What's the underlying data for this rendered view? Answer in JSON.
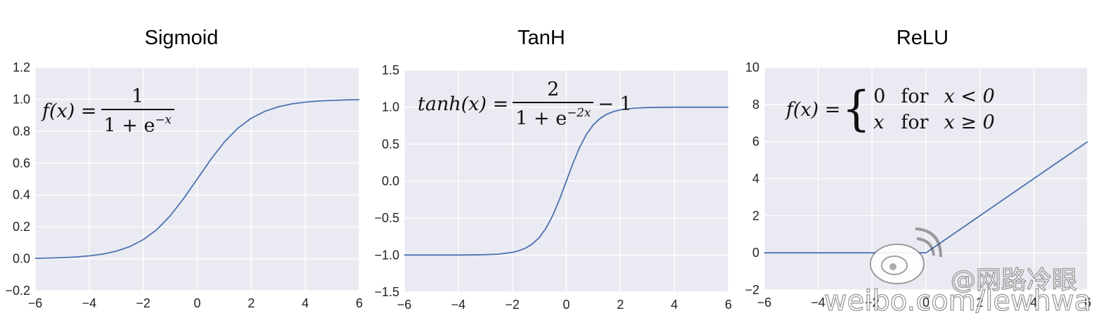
{
  "colors": {
    "plot_background": "#EAEAF2",
    "gridline": "#FFFFFF",
    "curve": "#4C72B0"
  },
  "chart_data": [
    {
      "type": "line",
      "title": "Sigmoid",
      "formula": {
        "lhs": "f(x) =",
        "numerator": "1",
        "denominator_base": "1 + e",
        "denominator_exp": "−x"
      },
      "x": [
        -6,
        -5.5,
        -5,
        -4.5,
        -4,
        -3.5,
        -3,
        -2.5,
        -2,
        -1.5,
        -1,
        -0.5,
        0,
        0.5,
        1,
        1.5,
        2,
        2.5,
        3,
        3.5,
        4,
        4.5,
        5,
        5.5,
        6
      ],
      "y": [
        0.0025,
        0.0041,
        0.0067,
        0.011,
        0.018,
        0.029,
        0.047,
        0.076,
        0.119,
        0.182,
        0.269,
        0.378,
        0.5,
        0.622,
        0.731,
        0.818,
        0.881,
        0.924,
        0.953,
        0.971,
        0.982,
        0.989,
        0.993,
        0.996,
        0.9975
      ],
      "xlim": [
        -6,
        6
      ],
      "ylim": [
        -0.2,
        1.2
      ],
      "xticks": [
        -6,
        -4,
        -2,
        0,
        2,
        4,
        6
      ],
      "xtick_labels": [
        "−6",
        "−4",
        "−2",
        "0",
        "2",
        "4",
        "6"
      ],
      "yticks": [
        -0.2,
        0.0,
        0.2,
        0.4,
        0.6,
        0.8,
        1.0,
        1.2
      ],
      "ytick_labels": [
        "−0.2",
        "0.0",
        "0.2",
        "0.4",
        "0.6",
        "0.8",
        "1.0",
        "1.2"
      ],
      "grid": true
    },
    {
      "type": "line",
      "title": "TanH",
      "formula": {
        "lhs": "tanh(x) =",
        "numerator": "2",
        "denominator_base": "1 + e",
        "denominator_exp": "−2x",
        "rhs": "− 1"
      },
      "x": [
        -6,
        -5,
        -4,
        -3,
        -2.5,
        -2,
        -1.75,
        -1.5,
        -1.25,
        -1,
        -0.75,
        -0.5,
        -0.25,
        0,
        0.25,
        0.5,
        0.75,
        1,
        1.25,
        1.5,
        1.75,
        2,
        2.5,
        3,
        4,
        5,
        6
      ],
      "y": [
        -1.0,
        -1.0,
        -0.9993,
        -0.995,
        -0.987,
        -0.964,
        -0.941,
        -0.905,
        -0.848,
        -0.762,
        -0.635,
        -0.462,
        -0.245,
        0.0,
        0.245,
        0.462,
        0.635,
        0.762,
        0.848,
        0.905,
        0.941,
        0.964,
        0.987,
        0.995,
        0.9993,
        1.0,
        1.0
      ],
      "xlim": [
        -6,
        6
      ],
      "ylim": [
        -1.5,
        1.5
      ],
      "xticks": [
        -6,
        -4,
        -2,
        0,
        2,
        4,
        6
      ],
      "xtick_labels": [
        "−6",
        "−4",
        "−2",
        "0",
        "2",
        "4",
        "6"
      ],
      "yticks": [
        -1.5,
        -1.0,
        -0.5,
        0.0,
        0.5,
        1.0,
        1.5
      ],
      "ytick_labels": [
        "−1.5",
        "−1.0",
        "−0.5",
        "0.0",
        "0.5",
        "1.0",
        "1.5"
      ],
      "grid": true
    },
    {
      "type": "line",
      "title": "ReLU",
      "formula": {
        "lhs": "f(x) =",
        "case1_value": "0",
        "case1_word": "for",
        "case1_cond": "x < 0",
        "case2_value": "x",
        "case2_word": "for",
        "case2_cond": "x ≥ 0"
      },
      "x": [
        -6,
        0,
        6
      ],
      "y": [
        0,
        0,
        6
      ],
      "xlim": [
        -6,
        6
      ],
      "ylim": [
        -2,
        10
      ],
      "xticks": [
        -6,
        -4,
        -2,
        0,
        2,
        4,
        6
      ],
      "xtick_labels": [
        "−6",
        "−4",
        "−2",
        "0",
        "2",
        "4",
        "6"
      ],
      "yticks": [
        -2,
        0,
        2,
        4,
        6,
        8,
        10
      ],
      "ytick_labels": [
        "−2",
        "0",
        "2",
        "4",
        "6",
        "8",
        "10"
      ],
      "grid": true
    }
  ],
  "watermark": {
    "handle": "@网路冷眼",
    "url": "weibo.com/lewhwa"
  }
}
